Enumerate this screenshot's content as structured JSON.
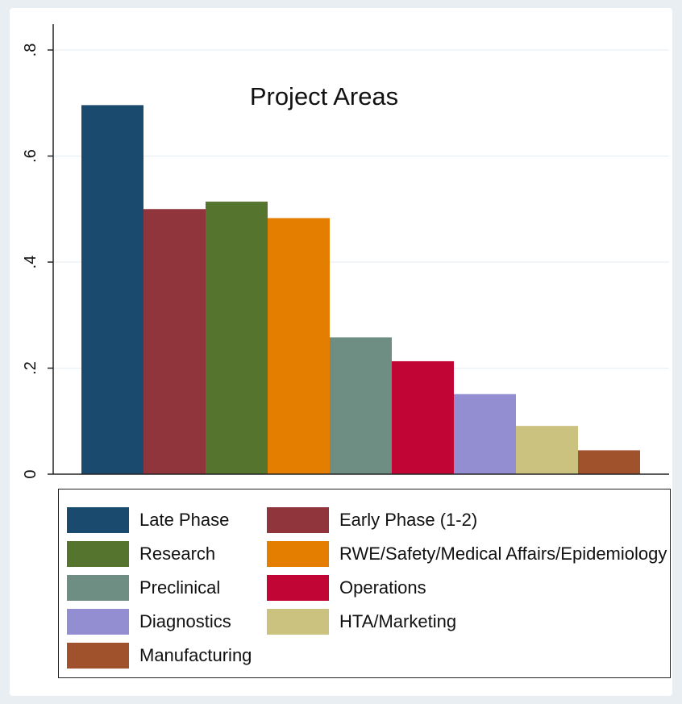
{
  "chart_data": {
    "type": "bar",
    "title": "Project Areas",
    "categories": [
      "Late Phase",
      "Early Phase (1-2)",
      "Research",
      "RWE/Safety/Medical Affairs/Epidemiology",
      "Preclinical",
      "Operations",
      "Diagnostics",
      "HTA/Marketing",
      "Manufacturing"
    ],
    "values": [
      0.696,
      0.5,
      0.514,
      0.483,
      0.258,
      0.213,
      0.151,
      0.091,
      0.045
    ],
    "colors": [
      "#1a4a6e",
      "#90353b",
      "#55752f",
      "#e37e00",
      "#6e8e84",
      "#c10534",
      "#938dd2",
      "#cac27e",
      "#a0522d"
    ],
    "yticks": [
      {
        "value": 0,
        "label": "0"
      },
      {
        "value": 0.2,
        "label": ".2"
      },
      {
        "value": 0.4,
        "label": ".4"
      },
      {
        "value": 0.6,
        "label": ".6"
      },
      {
        "value": 0.8,
        "label": ".8"
      }
    ],
    "ylim": [
      0,
      0.8
    ],
    "xlabel": "",
    "ylabel": "",
    "grid": true,
    "legend_position": "bottom"
  }
}
